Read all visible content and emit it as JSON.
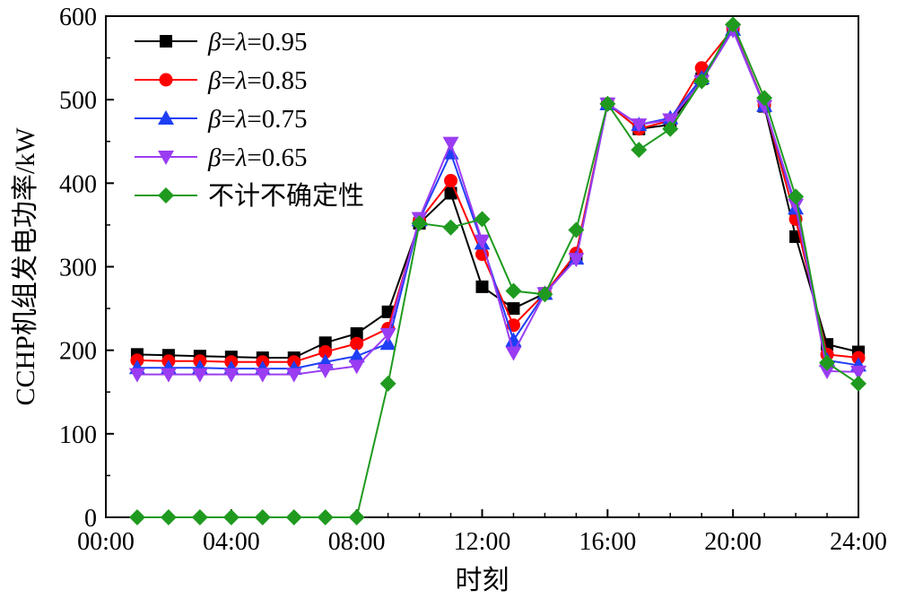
{
  "chart_data": {
    "type": "line",
    "title": "",
    "xlabel": "时刻",
    "ylabel": "CCHP机组发电功率/kW",
    "xlim": [
      0,
      24
    ],
    "ylim": [
      0,
      600
    ],
    "x_ticks": [
      "00:00",
      "04:00",
      "08:00",
      "12:00",
      "16:00",
      "20:00",
      "24:00"
    ],
    "y_ticks": [
      "0",
      "100",
      "200",
      "300",
      "400",
      "500",
      "600"
    ],
    "x": [
      1,
      2,
      3,
      4,
      5,
      6,
      7,
      8,
      9,
      10,
      11,
      12,
      13,
      14,
      15,
      16,
      17,
      18,
      19,
      20,
      21,
      22,
      23,
      24
    ],
    "grid": false,
    "legend_position": "top-left",
    "series": [
      {
        "name": "β=λ=0.95",
        "legend_prefix": "β=λ=",
        "legend_value": "0.95",
        "color": "#000000",
        "marker": "square",
        "values": [
          195,
          194,
          193,
          192,
          191,
          191,
          209,
          220,
          246,
          352,
          388,
          276,
          250,
          268,
          312,
          495,
          465,
          470,
          525,
          585,
          492,
          336,
          207,
          198
        ]
      },
      {
        "name": "β=λ=0.85",
        "legend_prefix": "β=λ=",
        "legend_value": "0.85",
        "color": "#ff0000",
        "marker": "circle",
        "values": [
          188,
          187,
          187,
          186,
          186,
          186,
          198,
          208,
          226,
          355,
          403,
          315,
          230,
          268,
          316,
          495,
          465,
          475,
          538,
          585,
          494,
          357,
          195,
          191
        ]
      },
      {
        "name": "β=λ=0.75",
        "legend_prefix": "β=λ=",
        "legend_value": "0.75",
        "color": "#1f3ff5",
        "marker": "triangle-up",
        "values": [
          179,
          179,
          179,
          178,
          178,
          178,
          186,
          193,
          208,
          356,
          436,
          328,
          212,
          268,
          310,
          495,
          470,
          478,
          526,
          584,
          493,
          370,
          188,
          182
        ]
      },
      {
        "name": "β=λ=0.65",
        "legend_prefix": "β=λ=",
        "legend_value": "0.65",
        "color": "#9a3cf2",
        "marker": "triangle-down",
        "values": [
          171,
          171,
          171,
          171,
          171,
          171,
          176,
          181,
          219,
          358,
          448,
          331,
          197,
          268,
          309,
          495,
          470,
          476,
          522,
          583,
          492,
          374,
          175,
          174
        ]
      },
      {
        "name": "不计不确定性",
        "legend_prefix": "",
        "legend_value": "不计不确定性",
        "color": "#1f9a1f",
        "marker": "diamond",
        "values": [
          0,
          0,
          0,
          0,
          0,
          0,
          0,
          0,
          160,
          352,
          347,
          357,
          271,
          267,
          344,
          495,
          440,
          465,
          522,
          590,
          502,
          384,
          185,
          160
        ]
      }
    ]
  }
}
